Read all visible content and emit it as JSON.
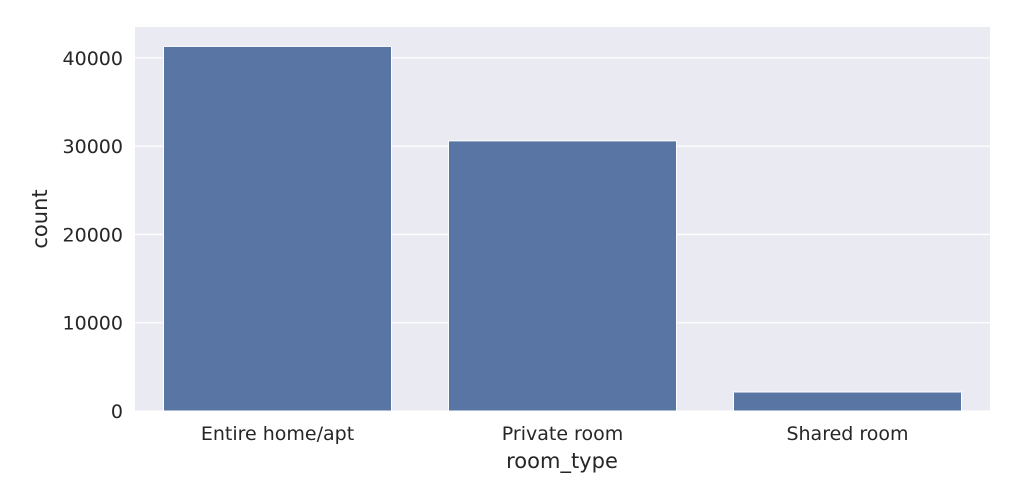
{
  "chart_data": {
    "type": "bar",
    "categories": [
      "Entire home/apt",
      "Private room",
      "Shared room"
    ],
    "values": [
      41300,
      30600,
      2150
    ],
    "title": "",
    "xlabel": "room_type",
    "ylabel": "count",
    "ylim": [
      0,
      43500
    ],
    "yticks": [
      0,
      10000,
      20000,
      30000,
      40000
    ],
    "ytick_labels": [
      "0",
      "10000",
      "20000",
      "30000",
      "40000"
    ],
    "grid": true,
    "legend": "none",
    "colors": {
      "bar": "#5975a4",
      "plot_background": "#eaeaf2",
      "grid": "#ffffff",
      "text": "#262626"
    }
  }
}
